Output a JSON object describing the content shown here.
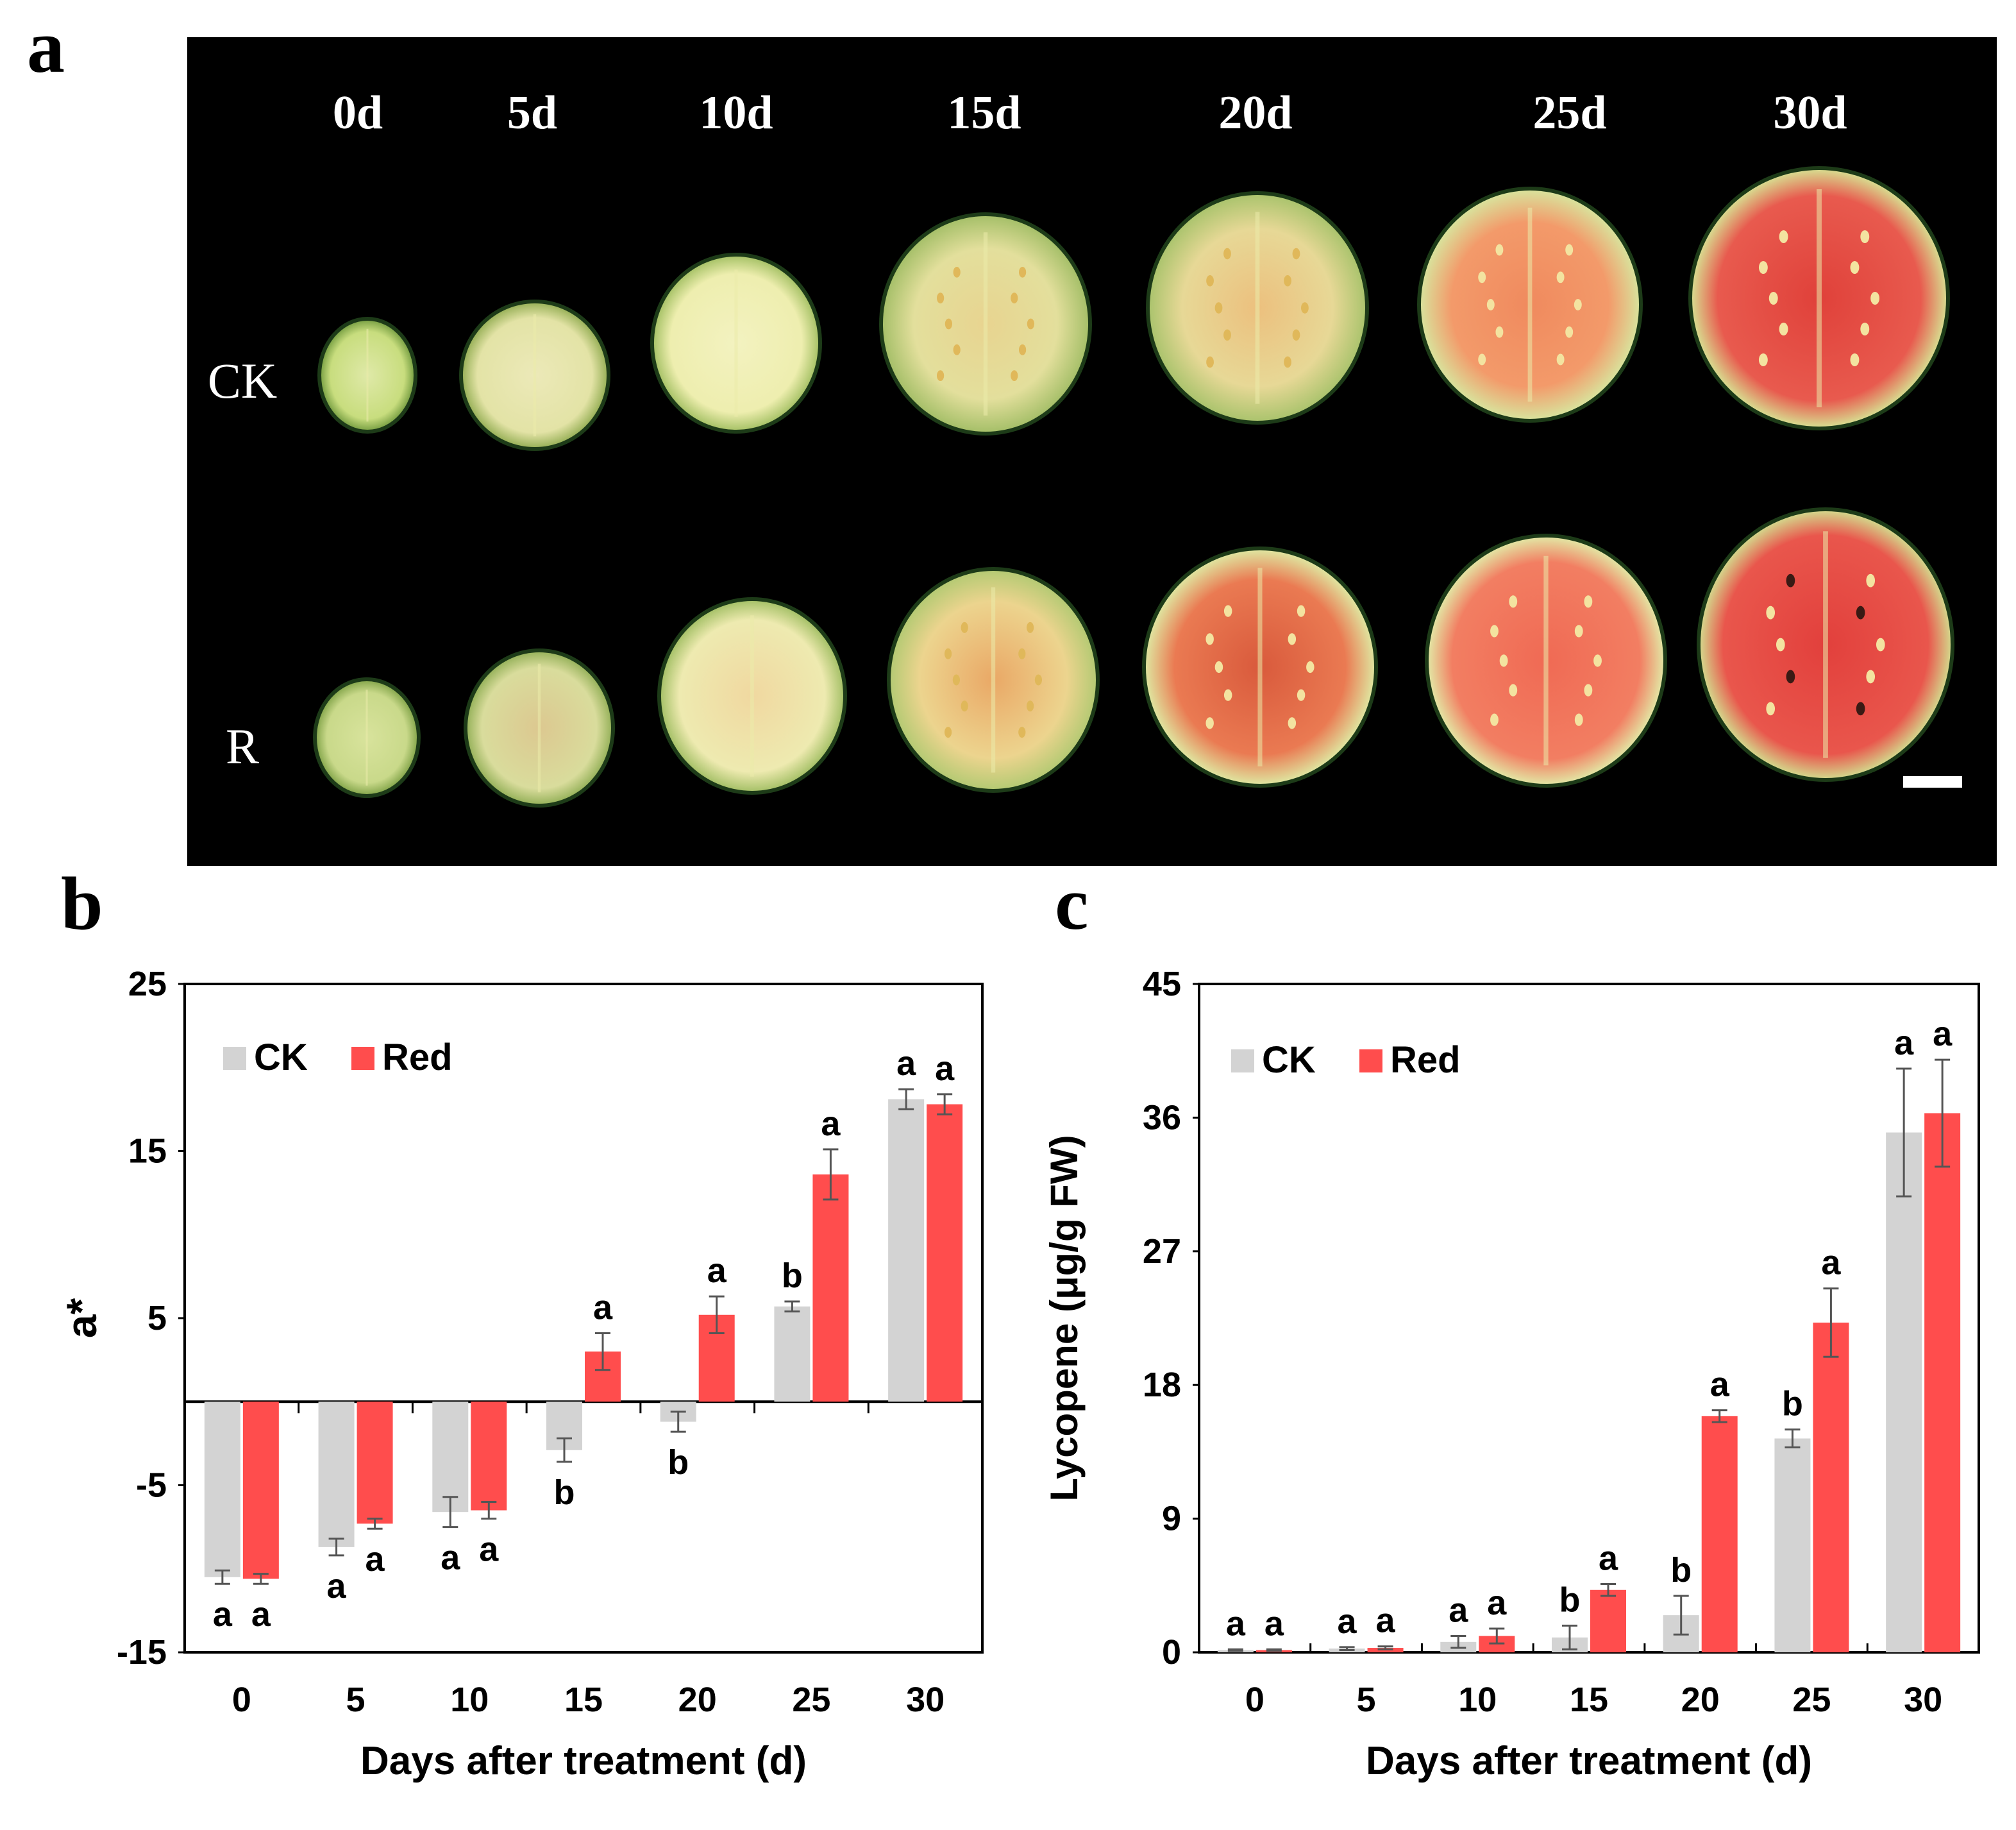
{
  "panel_labels": {
    "a": "a",
    "b": "b",
    "c": "c"
  },
  "panel_a": {
    "days": [
      "0d",
      "5d",
      "10d",
      "15d",
      "20d",
      "25d",
      "30d"
    ],
    "row_labels": [
      "CK",
      "R"
    ]
  },
  "colors": {
    "ck": "#d3d3d3",
    "red": "#ff4d4d",
    "photo_bg": "#000000",
    "rind": "#1d3b18"
  },
  "chart_data": [
    {
      "type": "bar",
      "title": "",
      "xlabel": "Days after treatment (d)",
      "ylabel": "a*",
      "categories": [
        "0",
        "5",
        "10",
        "15",
        "20",
        "25",
        "30"
      ],
      "ylim": [
        -15,
        25
      ],
      "yticks": [
        "25",
        "15",
        "5",
        "-5",
        "-15"
      ],
      "legend": "top-left",
      "series": [
        {
          "name": "CK",
          "values": [
            -10.5,
            -8.7,
            -6.6,
            -2.9,
            -1.2,
            5.7,
            18.1
          ],
          "errors": [
            0.4,
            0.5,
            0.9,
            0.7,
            0.6,
            0.3,
            0.6
          ],
          "letters": [
            "a",
            "a",
            "a",
            "b",
            "b",
            "b",
            "a"
          ]
        },
        {
          "name": "Red",
          "values": [
            -10.6,
            -7.3,
            -6.5,
            3.0,
            5.2,
            13.6,
            17.8
          ],
          "errors": [
            0.3,
            0.3,
            0.5,
            1.1,
            1.1,
            1.5,
            0.6
          ],
          "letters": [
            "a",
            "a",
            "a",
            "a",
            "a",
            "a",
            "a"
          ]
        }
      ]
    },
    {
      "type": "bar",
      "title": "",
      "xlabel": "Days after treatment (d)",
      "ylabel": "Lycopene  (μg/g FW)",
      "categories": [
        "0",
        "5",
        "10",
        "15",
        "20",
        "25",
        "30"
      ],
      "ylim": [
        0,
        45
      ],
      "yticks": [
        "45",
        "36",
        "27",
        "18",
        "9",
        "0"
      ],
      "legend": "top-left",
      "series": [
        {
          "name": "CK",
          "values": [
            0.15,
            0.25,
            0.7,
            1.0,
            2.5,
            14.4,
            35.0
          ],
          "errors": [
            0.05,
            0.1,
            0.4,
            0.8,
            1.3,
            0.6,
            4.3
          ],
          "letters": [
            "a",
            "a",
            "a",
            "b",
            "b",
            "b",
            "a"
          ]
        },
        {
          "name": "Red",
          "values": [
            0.15,
            0.3,
            1.1,
            4.2,
            15.9,
            22.2,
            36.3
          ],
          "errors": [
            0.05,
            0.1,
            0.5,
            0.4,
            0.4,
            2.3,
            3.6
          ],
          "letters": [
            "a",
            "a",
            "a",
            "a",
            "a",
            "a",
            "a"
          ]
        }
      ]
    }
  ]
}
